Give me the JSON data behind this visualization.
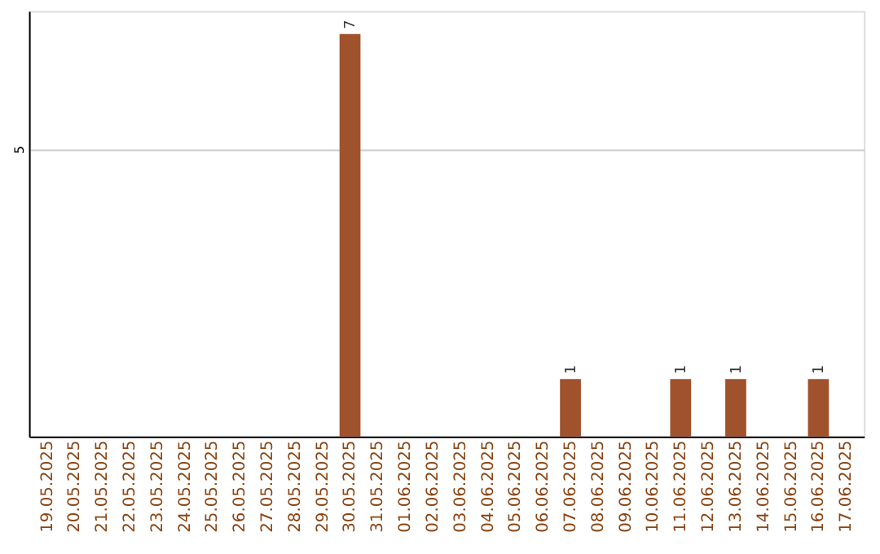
{
  "chart_data": {
    "type": "bar",
    "categories": [
      "19.05.2025",
      "20.05.2025",
      "21.05.2025",
      "22.05.2025",
      "23.05.2025",
      "24.05.2025",
      "25.05.2025",
      "26.05.2025",
      "27.05.2025",
      "28.05.2025",
      "29.05.2025",
      "30.05.2025",
      "31.05.2025",
      "01.06.2025",
      "02.06.2025",
      "03.06.2025",
      "04.06.2025",
      "05.06.2025",
      "06.06.2025",
      "07.06.2025",
      "08.06.2025",
      "09.06.2025",
      "10.06.2025",
      "11.06.2025",
      "12.06.2025",
      "13.06.2025",
      "14.06.2025",
      "15.06.2025",
      "16.06.2025",
      "17.06.2025"
    ],
    "values": [
      0,
      0,
      0,
      0,
      0,
      0,
      0,
      0,
      0,
      0,
      0,
      7,
      0,
      0,
      0,
      0,
      0,
      0,
      0,
      1,
      0,
      0,
      0,
      1,
      0,
      1,
      0,
      0,
      1,
      0
    ],
    "value_labels": [
      null,
      null,
      null,
      null,
      null,
      null,
      null,
      null,
      null,
      null,
      null,
      "7",
      null,
      null,
      null,
      null,
      null,
      null,
      null,
      "1",
      null,
      null,
      null,
      "1",
      null,
      "1",
      null,
      null,
      "1",
      null
    ],
    "color": "#a0522d",
    "ylim": [
      0,
      7.4
    ],
    "yticks": [
      5
    ],
    "grid": "y"
  }
}
